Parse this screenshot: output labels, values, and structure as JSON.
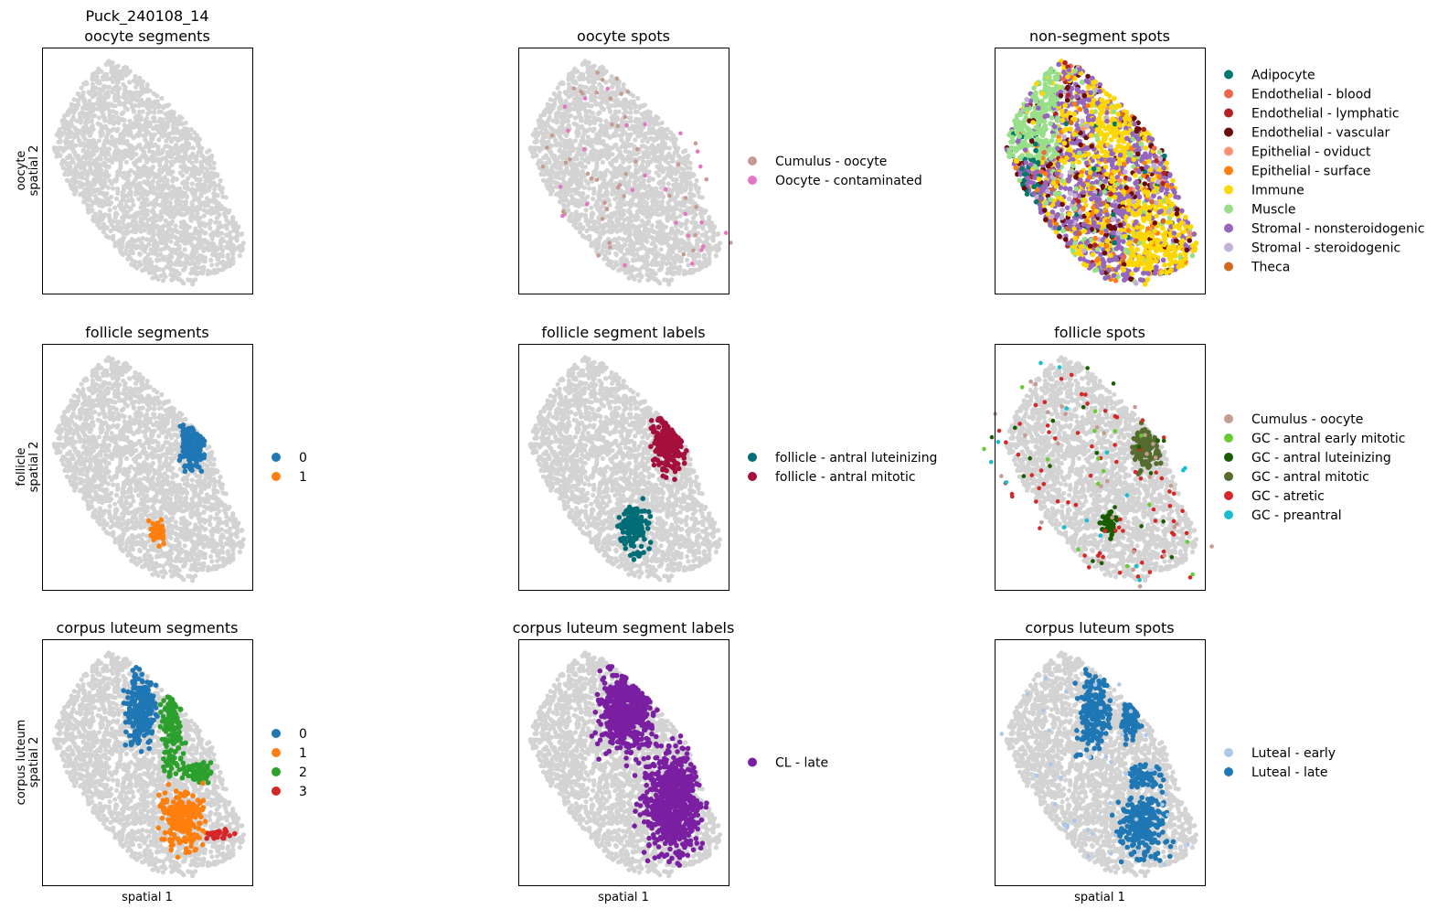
{
  "figure": {
    "dataset_title": "Puck_240108_14"
  },
  "colors": {
    "background_spots": "#d3d3d3",
    "axes_frame": "#000000"
  },
  "chart_data": [
    {
      "type": "scatter",
      "title": "oocyte segments",
      "xlabel": "",
      "ylabel": "oocyte\nspatial 2",
      "legend": [],
      "highlights": []
    },
    {
      "type": "scatter",
      "title": "oocyte spots",
      "xlabel": "",
      "ylabel": "",
      "legend": [
        {
          "label": "Cumulus - oocyte",
          "color": "#c49c94"
        },
        {
          "label": "Oocyte - contaminated",
          "color": "#e377c2"
        }
      ],
      "highlights": [
        {
          "series": 0,
          "mode": "sparse",
          "n": 45
        },
        {
          "series": 1,
          "mode": "sparse",
          "n": 25
        }
      ]
    },
    {
      "type": "scatter",
      "title": "non-segment spots",
      "xlabel": "",
      "ylabel": "",
      "legend": [
        {
          "label": "Adipocyte",
          "color": "#00796b"
        },
        {
          "label": "Endothelial - blood",
          "color": "#ef6548"
        },
        {
          "label": "Endothelial - lymphatic",
          "color": "#b22222"
        },
        {
          "label": "Endothelial - vascular",
          "color": "#6b0a0a"
        },
        {
          "label": "Epithelial - oviduct",
          "color": "#fc9272"
        },
        {
          "label": "Epithelial - surface",
          "color": "#ff7f0e"
        },
        {
          "label": "Immune",
          "color": "#ffd700"
        },
        {
          "label": "Muscle",
          "color": "#98df8a"
        },
        {
          "label": "Stromal - nonsteroidogenic",
          "color": "#9467bd"
        },
        {
          "label": "Stromal - steroidogenic",
          "color": "#c5b0d5"
        },
        {
          "label": "Theca",
          "color": "#d2691e"
        }
      ],
      "highlights": [],
      "dense_mix": true
    },
    {
      "type": "scatter",
      "title": "follicle segments",
      "xlabel": "",
      "ylabel": "follicle\nspatial 2",
      "legend": [
        {
          "label": "0",
          "color": "#1f77b4"
        },
        {
          "label": "1",
          "color": "#ff7f0e"
        }
      ],
      "highlights": [
        {
          "series": 0,
          "mode": "cluster",
          "cx": 0.72,
          "cy": 0.42,
          "rx": 0.06,
          "ry": 0.1,
          "n": 160
        },
        {
          "series": 1,
          "mode": "cluster",
          "cx": 0.55,
          "cy": 0.76,
          "rx": 0.04,
          "ry": 0.05,
          "n": 45
        }
      ]
    },
    {
      "type": "scatter",
      "title": "follicle segment labels",
      "xlabel": "",
      "ylabel": "",
      "legend": [
        {
          "label": "follicle - antral luteinizing",
          "color": "#006d77"
        },
        {
          "label": "follicle - antral mitotic",
          "color": "#a50f3c"
        }
      ],
      "highlights": [
        {
          "series": 1,
          "mode": "cluster",
          "cx": 0.72,
          "cy": 0.39,
          "rx": 0.08,
          "ry": 0.14,
          "n": 260
        },
        {
          "series": 0,
          "mode": "cluster",
          "cx": 0.55,
          "cy": 0.75,
          "rx": 0.07,
          "ry": 0.1,
          "n": 160
        }
      ]
    },
    {
      "type": "scatter",
      "title": "follicle spots",
      "xlabel": "",
      "ylabel": "",
      "legend": [
        {
          "label": "Cumulus - oocyte",
          "color": "#c49c94"
        },
        {
          "label": "GC - antral early mitotic",
          "color": "#66cc33"
        },
        {
          "label": "GC - antral luteinizing",
          "color": "#1a5c00"
        },
        {
          "label": "GC - antral mitotic",
          "color": "#556b2f"
        },
        {
          "label": "GC - atretic",
          "color": "#d62728"
        },
        {
          "label": "GC - preantral",
          "color": "#17becf"
        }
      ],
      "highlights": [
        {
          "series": 3,
          "mode": "cluster",
          "cx": 0.72,
          "cy": 0.42,
          "rx": 0.06,
          "ry": 0.09,
          "n": 140
        },
        {
          "series": 2,
          "mode": "cluster",
          "cx": 0.55,
          "cy": 0.74,
          "rx": 0.04,
          "ry": 0.05,
          "n": 40
        },
        {
          "series": 4,
          "mode": "sparse",
          "n": 70
        },
        {
          "series": 0,
          "mode": "sparse",
          "n": 30
        },
        {
          "series": 1,
          "mode": "sparse",
          "n": 15
        },
        {
          "series": 5,
          "mode": "sparse",
          "n": 15
        },
        {
          "series": 2,
          "mode": "sparse",
          "n": 20
        }
      ]
    },
    {
      "type": "scatter",
      "title": "corpus luteum segments",
      "xlabel": "spatial 1",
      "ylabel": "corpus luteum\nspatial 2",
      "legend": [
        {
          "label": "0",
          "color": "#1f77b4"
        },
        {
          "label": "1",
          "color": "#ff7f0e"
        },
        {
          "label": "2",
          "color": "#2ca02c"
        },
        {
          "label": "3",
          "color": "#d62728"
        }
      ],
      "highlights": [
        {
          "series": 0,
          "mode": "cluster",
          "cx": 0.47,
          "cy": 0.28,
          "rx": 0.07,
          "ry": 0.15,
          "n": 240
        },
        {
          "series": 2,
          "mode": "cluster",
          "cx": 0.62,
          "cy": 0.36,
          "rx": 0.05,
          "ry": 0.2,
          "n": 150
        },
        {
          "series": 2,
          "mode": "cluster",
          "cx": 0.74,
          "cy": 0.54,
          "rx": 0.07,
          "ry": 0.04,
          "n": 60
        },
        {
          "series": 1,
          "mode": "cluster",
          "cx": 0.67,
          "cy": 0.73,
          "rx": 0.1,
          "ry": 0.12,
          "n": 260
        },
        {
          "series": 3,
          "mode": "cluster",
          "cx": 0.84,
          "cy": 0.79,
          "rx": 0.07,
          "ry": 0.02,
          "n": 30
        }
      ]
    },
    {
      "type": "scatter",
      "title": "corpus luteum segment labels",
      "xlabel": "spatial 1",
      "ylabel": "",
      "legend": [
        {
          "label": "CL - late",
          "color": "#7b1fa2"
        }
      ],
      "highlights": [
        {
          "series": 0,
          "mode": "cluster",
          "cx": 0.52,
          "cy": 0.28,
          "rx": 0.13,
          "ry": 0.18,
          "n": 600
        },
        {
          "series": 0,
          "mode": "cluster",
          "cx": 0.73,
          "cy": 0.66,
          "rx": 0.14,
          "ry": 0.22,
          "n": 700
        }
      ]
    },
    {
      "type": "scatter",
      "title": "corpus luteum spots",
      "xlabel": "spatial 1",
      "ylabel": "",
      "legend": [
        {
          "label": "Luteal - early",
          "color": "#aec7e8"
        },
        {
          "label": "Luteal - late",
          "color": "#1f77b4"
        }
      ],
      "highlights": [
        {
          "series": 1,
          "mode": "cluster",
          "cx": 0.47,
          "cy": 0.3,
          "rx": 0.08,
          "ry": 0.15,
          "n": 220
        },
        {
          "series": 1,
          "mode": "cluster",
          "cx": 0.65,
          "cy": 0.32,
          "rx": 0.05,
          "ry": 0.12,
          "n": 90
        },
        {
          "series": 1,
          "mode": "cluster",
          "cx": 0.72,
          "cy": 0.56,
          "rx": 0.08,
          "ry": 0.05,
          "n": 70
        },
        {
          "series": 1,
          "mode": "cluster",
          "cx": 0.7,
          "cy": 0.76,
          "rx": 0.12,
          "ry": 0.12,
          "n": 260
        },
        {
          "series": 0,
          "mode": "sparse",
          "n": 40
        }
      ]
    }
  ]
}
